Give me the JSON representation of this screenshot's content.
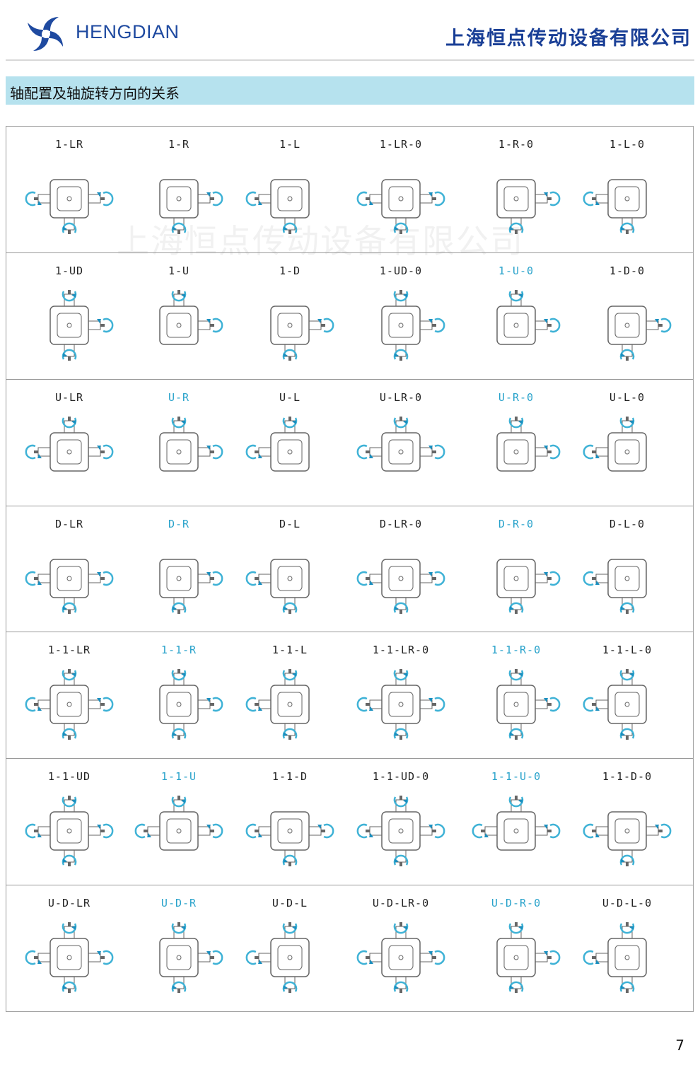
{
  "header": {
    "brand": "HENGDIAN",
    "company": "上海恒点传动设备有限公司"
  },
  "section_title": "轴配置及轴旋转方向的关系",
  "watermark": "上海恒点传动设备有限公司",
  "colors": {
    "accent": "#2aa3cb",
    "brand": "#1f4aa0",
    "section_bg": "#b6e2ee"
  },
  "rows": [
    {
      "items": [
        {
          "label": "1-LR"
        },
        {
          "label": "1-R"
        },
        {
          "label": "1-L"
        },
        {
          "label": "1-LR-0"
        },
        {
          "label": "1-R-0"
        },
        {
          "label": "1-L-0"
        }
      ]
    },
    {
      "items": [
        {
          "label": "1-UD"
        },
        {
          "label": "1-U"
        },
        {
          "label": "1-D"
        },
        {
          "label": "1-UD-0"
        },
        {
          "label": "1-U-0",
          "highlight": true
        },
        {
          "label": "1-D-0"
        }
      ]
    },
    {
      "items": [
        {
          "label": "U-LR"
        },
        {
          "label": "U-R",
          "highlight": true
        },
        {
          "label": "U-L"
        },
        {
          "label": "U-LR-0"
        },
        {
          "label": "U-R-0",
          "highlight": true
        },
        {
          "label": "U-L-0"
        }
      ]
    },
    {
      "items": [
        {
          "label": "D-LR"
        },
        {
          "label": "D-R",
          "highlight": true
        },
        {
          "label": "D-L"
        },
        {
          "label": "D-LR-0"
        },
        {
          "label": "D-R-0",
          "highlight": true
        },
        {
          "label": "D-L-0"
        }
      ]
    },
    {
      "items": [
        {
          "label": "1-1-LR"
        },
        {
          "label": "1-1-R",
          "highlight": true
        },
        {
          "label": "1-1-L"
        },
        {
          "label": "1-1-LR-0"
        },
        {
          "label": "1-1-R-0",
          "highlight": true
        },
        {
          "label": "1-1-L-0"
        }
      ]
    },
    {
      "items": [
        {
          "label": "1-1-UD"
        },
        {
          "label": "1-1-U",
          "highlight": true
        },
        {
          "label": "1-1-D"
        },
        {
          "label": "1-1-UD-0"
        },
        {
          "label": "1-1-U-0",
          "highlight": true
        },
        {
          "label": "1-1-D-0"
        }
      ]
    },
    {
      "items": [
        {
          "label": "U-D-LR"
        },
        {
          "label": "U-D-R",
          "highlight": true
        },
        {
          "label": "U-D-L"
        },
        {
          "label": "U-D-LR-0"
        },
        {
          "label": "U-D-R-0",
          "highlight": true
        },
        {
          "label": "U-D-L-0"
        }
      ]
    }
  ],
  "page_number": "7"
}
